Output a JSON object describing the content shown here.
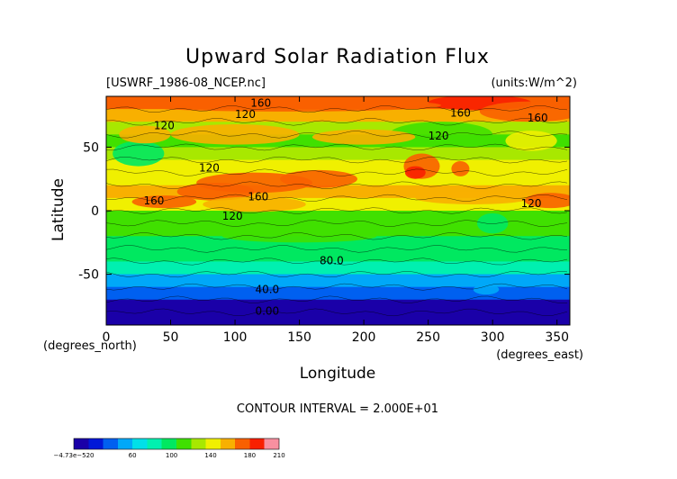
{
  "chart_data": {
    "type": "heatmap",
    "title": "Upward Solar Radiation Flux",
    "file_label": "[USWRF_1986-08_NCEP.nc]",
    "units_label": "(units:W/m^2)",
    "xlabel": "Longitude",
    "ylabel": "Latitude",
    "x_unit_label": "(degrees_east)",
    "y_unit_label": "(degrees_north)",
    "xlim": [
      0,
      360
    ],
    "ylim": [
      -90,
      90
    ],
    "x_ticks": [
      "0",
      "50",
      "100",
      "150",
      "200",
      "250",
      "300",
      "350"
    ],
    "x_tick_values": [
      0,
      50,
      100,
      150,
      200,
      250,
      300,
      350
    ],
    "y_ticks": [
      "50",
      "0",
      "-50"
    ],
    "y_tick_values": [
      50,
      0,
      -50
    ],
    "contour_interval_text": "CONTOUR INTERVAL = 2.000E+01",
    "contour_labels": [
      {
        "text": "160",
        "lon": 120,
        "lat": 82
      },
      {
        "text": "120",
        "lon": 108,
        "lat": 73
      },
      {
        "text": "120",
        "lon": 45,
        "lat": 64
      },
      {
        "text": "160",
        "lon": 275,
        "lat": 74
      },
      {
        "text": "160",
        "lon": 335,
        "lat": 70
      },
      {
        "text": "120",
        "lon": 258,
        "lat": 56
      },
      {
        "text": "120",
        "lon": 80,
        "lat": 31
      },
      {
        "text": "160",
        "lon": 37,
        "lat": 5
      },
      {
        "text": "160",
        "lon": 118,
        "lat": 8
      },
      {
        "text": "120",
        "lon": 330,
        "lat": 3
      },
      {
        "text": "120",
        "lon": 98,
        "lat": -7
      },
      {
        "text": "80.0",
        "lon": 175,
        "lat": -42
      },
      {
        "text": "40.0",
        "lon": 125,
        "lat": -65
      },
      {
        "text": "0.00",
        "lon": 125,
        "lat": -82
      }
    ],
    "zonal_profile": [
      {
        "lat": 90,
        "value": 160
      },
      {
        "lat": 80,
        "value": 170
      },
      {
        "lat": 70,
        "value": 140
      },
      {
        "lat": 60,
        "value": 110
      },
      {
        "lat": 50,
        "value": 120
      },
      {
        "lat": 40,
        "value": 130
      },
      {
        "lat": 30,
        "value": 140
      },
      {
        "lat": 20,
        "value": 150
      },
      {
        "lat": 10,
        "value": 160
      },
      {
        "lat": 0,
        "value": 120
      },
      {
        "lat": -10,
        "value": 110
      },
      {
        "lat": -20,
        "value": 100
      },
      {
        "lat": -30,
        "value": 95
      },
      {
        "lat": -40,
        "value": 85
      },
      {
        "lat": -50,
        "value": 70
      },
      {
        "lat": -60,
        "value": 40
      },
      {
        "lat": -70,
        "value": 20
      },
      {
        "lat": -80,
        "value": 0
      },
      {
        "lat": -90,
        "value": 0
      }
    ],
    "colorbar": {
      "colors": [
        "#1a00a8",
        "#0018d8",
        "#0060f0",
        "#00a8f8",
        "#00e0e8",
        "#00f0b0",
        "#00e860",
        "#40e000",
        "#a8e800",
        "#f0f000",
        "#f8b000",
        "#f86000",
        "#f82000",
        "#f890a0"
      ],
      "tick_labels": [
        "−4.73e−520",
        "60",
        "100",
        "140",
        "180",
        "210"
      ],
      "tick_values": [
        0,
        60,
        100,
        140,
        180,
        210
      ],
      "range": [
        0,
        210
      ]
    }
  }
}
